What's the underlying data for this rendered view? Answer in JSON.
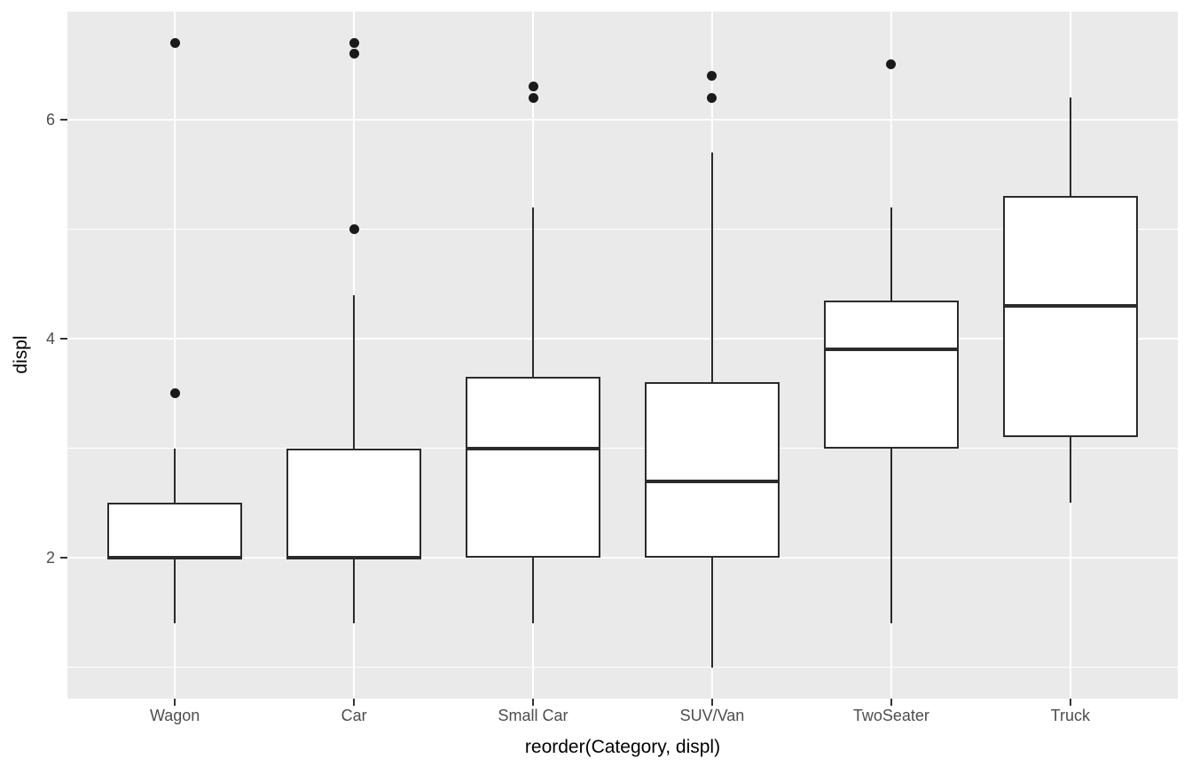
{
  "chart_data": {
    "type": "boxplot",
    "title": "",
    "xlabel": "reorder(Category, displ)",
    "ylabel": "displ",
    "categories": [
      "Wagon",
      "Car",
      "Small Car",
      "SUV/Van",
      "TwoSeater",
      "Truck"
    ],
    "y_axis": {
      "tick_values": [
        2,
        4,
        6
      ],
      "tick_labels": [
        "2",
        "4",
        "6"
      ],
      "minor_tick_values": [
        1,
        3,
        5
      ],
      "ylim": [
        0.715,
        6.985
      ]
    },
    "series": [
      {
        "category": "Wagon",
        "whisker_low": 1.4,
        "q1": 2.0,
        "median": 2.0,
        "q3": 2.5,
        "whisker_high": 3.0,
        "outliers": [
          3.5,
          6.7
        ]
      },
      {
        "category": "Car",
        "whisker_low": 1.4,
        "q1": 2.0,
        "median": 2.0,
        "q3": 3.0,
        "whisker_high": 4.4,
        "outliers": [
          5.0,
          6.6,
          6.7
        ]
      },
      {
        "category": "Small Car",
        "whisker_low": 1.4,
        "q1": 2.0,
        "median": 3.0,
        "q3": 3.65,
        "whisker_high": 5.2,
        "outliers": [
          6.2,
          6.3
        ]
      },
      {
        "category": "SUV/Van",
        "whisker_low": 1.0,
        "q1": 2.0,
        "median": 2.7,
        "q3": 3.6,
        "whisker_high": 5.7,
        "outliers": [
          6.2,
          6.4
        ]
      },
      {
        "category": "TwoSeater",
        "whisker_low": 1.4,
        "q1": 3.0,
        "median": 3.9,
        "q3": 4.35,
        "whisker_high": 5.2,
        "outliers": [
          6.5
        ]
      },
      {
        "category": "Truck",
        "whisker_low": 2.5,
        "q1": 3.1,
        "median": 4.3,
        "q3": 5.3,
        "whisker_high": 6.2,
        "outliers": []
      }
    ],
    "grid": true,
    "legend": "none",
    "style": {
      "panel_bg": "#EAEAEA",
      "grid_color": "#FFFFFF",
      "box_fill": "#FFFFFF",
      "box_stroke": "#2B2B2B",
      "outlier_color": "#1A1A1A",
      "tick_mark_color": "#333333",
      "tick_label_color": "#4D4D4D",
      "axis_title_color": "#000000"
    }
  }
}
